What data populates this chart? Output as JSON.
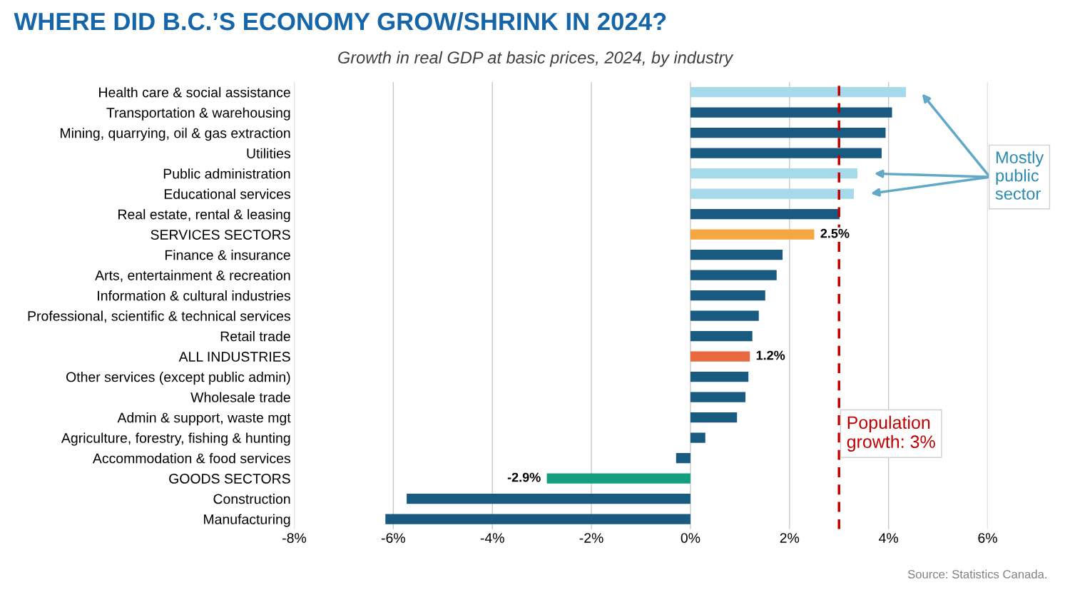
{
  "chart_data": {
    "type": "bar",
    "orientation": "horizontal",
    "title": "WHERE DID B.C.’S ECONOMY GROW/SHRINK IN 2024?",
    "subtitle": "Growth in real GDP at basic prices, 2024, by industry",
    "categories": [
      "Health care & social assistance",
      "Transportation & warehousing",
      "Mining, quarrying, oil & gas extraction",
      "Utilities",
      "Public administration",
      "Educational services",
      "Real estate, rental & leasing",
      "SERVICES SECTORS",
      "Finance & insurance",
      "Arts, entertainment & recreation",
      "Information & cultural industries",
      "Professional, scientific & technical services",
      "Retail trade",
      "ALL INDUSTRIES",
      "Other services (except public admin)",
      "Wholesale trade",
      "Admin & support, waste mgt",
      "Agriculture, forestry, fishing & hunting",
      "Accommodation & food services",
      "GOODS SECTORS",
      "Construction",
      "Manufacturing"
    ],
    "values": [
      4.35,
      4.07,
      3.94,
      3.86,
      3.37,
      3.3,
      3.01,
      2.5,
      1.86,
      1.74,
      1.51,
      1.38,
      1.25,
      1.2,
      1.17,
      1.11,
      0.94,
      0.3,
      -0.29,
      -2.9,
      -5.73,
      -6.16
    ],
    "colors": [
      "#a6d9ea",
      "#195a80",
      "#195a80",
      "#195a80",
      "#a6d9ea",
      "#a6d9ea",
      "#195a80",
      "#f5a742",
      "#195a80",
      "#195a80",
      "#195a80",
      "#195a80",
      "#195a80",
      "#e8693f",
      "#195a80",
      "#195a80",
      "#195a80",
      "#195a80",
      "#195a80",
      "#139f7f",
      "#195a80",
      "#195a80"
    ],
    "value_labels": [
      null,
      null,
      null,
      null,
      null,
      null,
      null,
      "2.5%",
      null,
      null,
      null,
      null,
      null,
      "1.2%",
      null,
      null,
      null,
      null,
      null,
      "-2.9%",
      null,
      null
    ],
    "xlim": [
      -8,
      6
    ],
    "xticks": [
      {
        "value": -8,
        "label": "-8%"
      },
      {
        "value": -6,
        "label": "-6%"
      },
      {
        "value": -4,
        "label": "-4%"
      },
      {
        "value": -2,
        "label": "-2%"
      },
      {
        "value": 0,
        "label": "0%"
      },
      {
        "value": 2,
        "label": "2%"
      },
      {
        "value": 4,
        "label": "4%"
      },
      {
        "value": 6,
        "label": "6%"
      }
    ],
    "grid": "x",
    "ref_lines": [
      {
        "axis": "x",
        "value": 3,
        "label": "Population\ngrowth: 3%",
        "color": "#c00000",
        "line_style": "dashed"
      }
    ],
    "annotations": [
      "Mostly\npublic\nsector",
      "Source: Statistics Canada."
    ]
  }
}
